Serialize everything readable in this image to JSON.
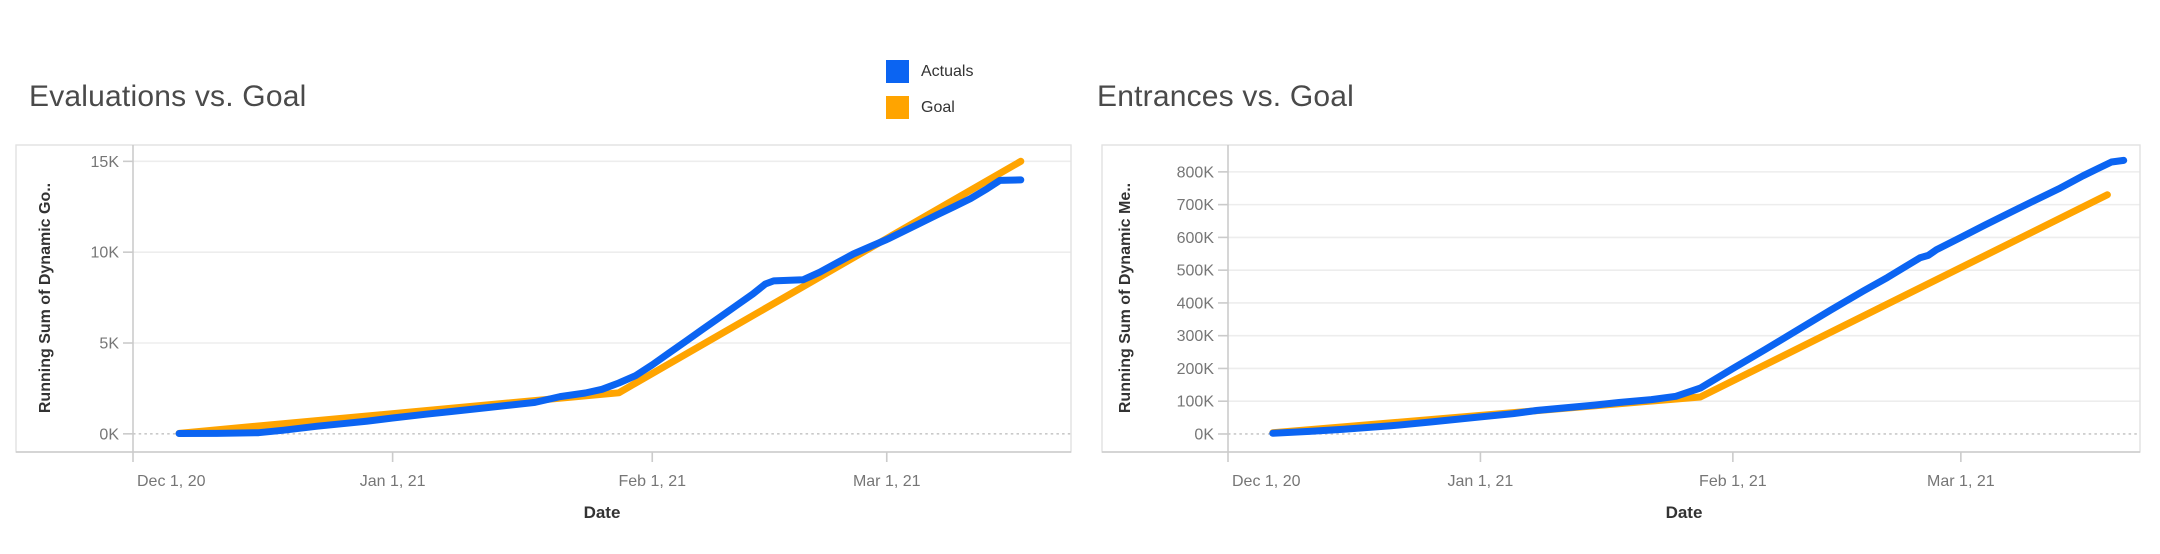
{
  "legend": {
    "items": [
      {
        "label": "Actuals",
        "color": "#0b64f2"
      },
      {
        "label": "Goal",
        "color": "#ffa400"
      }
    ]
  },
  "colors": {
    "actuals": "#0b64f2",
    "goal": "#ffa400",
    "gridline": "#ededed",
    "zero_line": "#c9c9c9",
    "axis_line": "#cbcbcb",
    "zone_border": "#e2e2e2",
    "tick_text": "#767676",
    "title_text": "#4a4a4a"
  },
  "chart_data": [
    {
      "type": "line",
      "title": "Evaluations vs. Goal",
      "x_axis_label": "Date",
      "y_axis_label": "Running Sum of Dynamic Go..",
      "grid": true,
      "legend_position": "top-center",
      "x_domain_days": [
        0,
        112
      ],
      "x_domain_note": "days since Dec 1, 2020; axis ends ~Mar 23, 2021",
      "y_domain": [
        -1000,
        15900
      ],
      "x_ticks": [
        {
          "day": 0,
          "label": "Dec 1, 20"
        },
        {
          "day": 31,
          "label": "Jan 1, 21"
        },
        {
          "day": 62,
          "label": "Feb 1, 21"
        },
        {
          "day": 90,
          "label": "Mar 1, 21"
        }
      ],
      "y_ticks": [
        {
          "value": 0,
          "label": "0K"
        },
        {
          "value": 5000,
          "label": "5K"
        },
        {
          "value": 10000,
          "label": "10K"
        },
        {
          "value": 15000,
          "label": "15K"
        }
      ],
      "series": [
        {
          "name": "Goal",
          "color": "#ffa400",
          "points": [
            [
              5.5,
              30
            ],
            [
              58,
              2260
            ],
            [
              106,
              15000
            ]
          ]
        },
        {
          "name": "Actuals",
          "color": "#0b64f2",
          "points": [
            [
              5.5,
              20
            ],
            [
              10,
              25
            ],
            [
              15,
              60
            ],
            [
              18,
              200
            ],
            [
              22,
              420
            ],
            [
              25,
              560
            ],
            [
              28,
              700
            ],
            [
              31,
              870
            ],
            [
              35,
              1080
            ],
            [
              38,
              1230
            ],
            [
              42,
              1430
            ],
            [
              45,
              1580
            ],
            [
              48,
              1730
            ],
            [
              51,
              2050
            ],
            [
              54,
              2250
            ],
            [
              56,
              2450
            ],
            [
              58,
              2800
            ],
            [
              60,
              3200
            ],
            [
              62,
              3800
            ],
            [
              64,
              4450
            ],
            [
              66,
              5100
            ],
            [
              68,
              5750
            ],
            [
              70,
              6400
            ],
            [
              72,
              7050
            ],
            [
              74,
              7700
            ],
            [
              75.5,
              8250
            ],
            [
              76.5,
              8420
            ],
            [
              80,
              8480
            ],
            [
              82,
              8900
            ],
            [
              84,
              9400
            ],
            [
              86,
              9900
            ],
            [
              88,
              10300
            ],
            [
              90,
              10700
            ],
            [
              92,
              11150
            ],
            [
              94,
              11600
            ],
            [
              96,
              12050
            ],
            [
              98,
              12500
            ],
            [
              100,
              12950
            ],
            [
              102,
              13500
            ],
            [
              103.5,
              13950
            ],
            [
              106,
              13980
            ]
          ]
        }
      ]
    },
    {
      "type": "line",
      "title": "Entrances vs. Goal",
      "x_axis_label": "Date",
      "y_axis_label": "Running Sum of Dynamic Me..",
      "grid": true,
      "x_domain_days": [
        0,
        112
      ],
      "x_domain_note": "days since Dec 1, 2020; axis ends ~Mar 23, 2021",
      "y_domain": [
        -55000,
        882000
      ],
      "x_ticks": [
        {
          "day": 0,
          "label": "Dec 1, 20"
        },
        {
          "day": 31,
          "label": "Jan 1, 21"
        },
        {
          "day": 62,
          "label": "Feb 1, 21"
        },
        {
          "day": 90,
          "label": "Mar 1, 21"
        }
      ],
      "y_ticks": [
        {
          "value": 0,
          "label": "0K"
        },
        {
          "value": 100000,
          "label": "100K"
        },
        {
          "value": 200000,
          "label": "200K"
        },
        {
          "value": 300000,
          "label": "300K"
        },
        {
          "value": 400000,
          "label": "400K"
        },
        {
          "value": 500000,
          "label": "500K"
        },
        {
          "value": 600000,
          "label": "600K"
        },
        {
          "value": 700000,
          "label": "700K"
        },
        {
          "value": 800000,
          "label": "800K"
        }
      ],
      "series": [
        {
          "name": "Goal",
          "color": "#ffa400",
          "points": [
            [
              5.5,
              4000
            ],
            [
              58,
              113000
            ],
            [
              108,
              730000
            ]
          ]
        },
        {
          "name": "Actuals",
          "color": "#0b64f2",
          "points": [
            [
              5.5,
              2000
            ],
            [
              10,
              8000
            ],
            [
              14,
              14000
            ],
            [
              20,
              25000
            ],
            [
              25,
              37000
            ],
            [
              31,
              52000
            ],
            [
              35,
              62000
            ],
            [
              38,
              72000
            ],
            [
              42,
              81000
            ],
            [
              45,
              88000
            ],
            [
              48,
              96000
            ],
            [
              52,
              105000
            ],
            [
              55,
              115000
            ],
            [
              58,
              140000
            ],
            [
              62,
              200000
            ],
            [
              66,
              258000
            ],
            [
              70,
              318000
            ],
            [
              74,
              378000
            ],
            [
              78,
              436000
            ],
            [
              81,
              478000
            ],
            [
              83,
              508000
            ],
            [
              85,
              538000
            ],
            [
              86,
              545000
            ],
            [
              87,
              562000
            ],
            [
              90,
              600000
            ],
            [
              93,
              638000
            ],
            [
              96,
              675000
            ],
            [
              99,
              712000
            ],
            [
              102,
              748000
            ],
            [
              105,
              788000
            ],
            [
              107,
              812000
            ],
            [
              108.5,
              830000
            ],
            [
              110,
              835000
            ]
          ]
        }
      ]
    }
  ]
}
